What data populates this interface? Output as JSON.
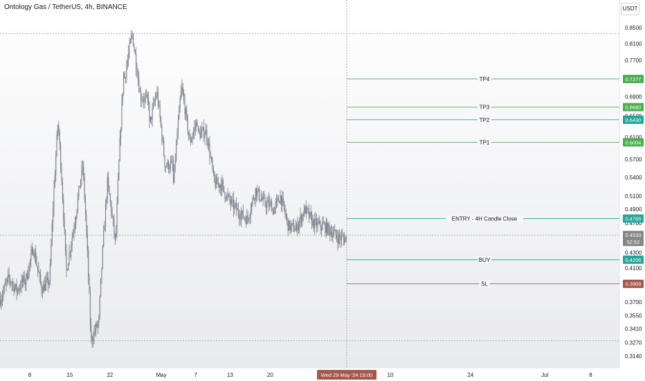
{
  "header": {
    "title": "Ontology Gas / TetherUS, 4h, BINANCE",
    "currency": "USDT"
  },
  "colors": {
    "candle": "#787b86",
    "green_line": "#4caf50",
    "teal_line": "#26a69a",
    "sl_line": "#7e6b6b",
    "sl_badge": "#a6574b",
    "price_badge": "#878787",
    "crosshair": "#9598a1"
  },
  "chart_data": {
    "type": "candlestick",
    "title": "Ontology Gas / TetherUS, 4h, BINANCE",
    "y_axis": {
      "scale": "log",
      "ticks": [
        0.85,
        0.81,
        0.77,
        0.69,
        0.65,
        0.61,
        0.57,
        0.54,
        0.51,
        0.49,
        0.47,
        0.43,
        0.41,
        0.37,
        0.355,
        0.341,
        0.327,
        0.314
      ],
      "tick_labels": [
        "0.8500",
        "0.8100",
        "0.7700",
        "0.6900",
        "0.6500",
        "0.6100",
        "0.5700",
        "0.5400",
        "0.5100",
        "0.4900",
        "0.4700",
        "0.4300",
        "0.4100",
        "0.3700",
        "0.3550",
        "0.3410",
        "0.3270",
        "0.3140"
      ]
    },
    "x_axis": {
      "tick_labels": [
        "8",
        "15",
        "22",
        "May",
        "7",
        "13",
        "20",
        "10",
        "24",
        "Jul",
        "8"
      ],
      "crosshair_label": "Wed 29 May '24   19:00"
    },
    "price_levels": [
      {
        "label": "TP4",
        "value": 0.7277,
        "value_text": "0.7277",
        "color": "green"
      },
      {
        "label": "TP3",
        "value": 0.668,
        "value_text": "0.6680",
        "color": "green"
      },
      {
        "label": "TP2",
        "value": 0.643,
        "value_text": "0.6430",
        "color": "teal"
      },
      {
        "label": "TP1",
        "value": 0.6004,
        "value_text": "0.6004",
        "color": "green"
      },
      {
        "label": "ENTRY - 4H Candle Close",
        "value": 0.4765,
        "value_text": "0.4765",
        "color": "teal"
      },
      {
        "label": "BUY",
        "value": 0.4206,
        "value_text": "0.4206",
        "color": "teal"
      },
      {
        "label": "SL",
        "value": 0.3909,
        "value_text": "0.3909",
        "color": "sl"
      }
    ],
    "current_price": {
      "value": 0.4533,
      "value_text": "0.4533",
      "countdown": "52:52"
    },
    "range_high": 0.835,
    "range_low": 0.329,
    "price_path": [
      [
        0.373,
        0.398,
        0.383,
        0.398
      ],
      [
        0.392,
        0.436,
        0.385,
        0.395
      ],
      [
        0.402,
        0.64,
        0.405,
        0.47
      ],
      [
        0.47,
        0.56,
        0.329,
        0.35
      ],
      [
        0.36,
        0.532,
        0.44,
        0.75
      ],
      [
        0.72,
        0.835,
        0.69,
        0.68
      ],
      [
        0.625,
        0.7,
        0.56,
        0.56
      ],
      [
        0.53,
        0.71,
        0.6,
        0.645
      ],
      [
        0.615,
        0.62,
        0.53,
        0.528
      ],
      [
        0.52,
        0.5,
        0.485,
        0.475
      ],
      [
        0.475,
        0.52,
        0.5,
        0.495
      ],
      [
        0.485,
        0.51,
        0.465,
        0.462
      ],
      [
        0.465,
        0.49,
        0.47,
        0.465
      ],
      [
        0.468,
        0.46,
        0.45,
        0.448
      ]
    ]
  }
}
